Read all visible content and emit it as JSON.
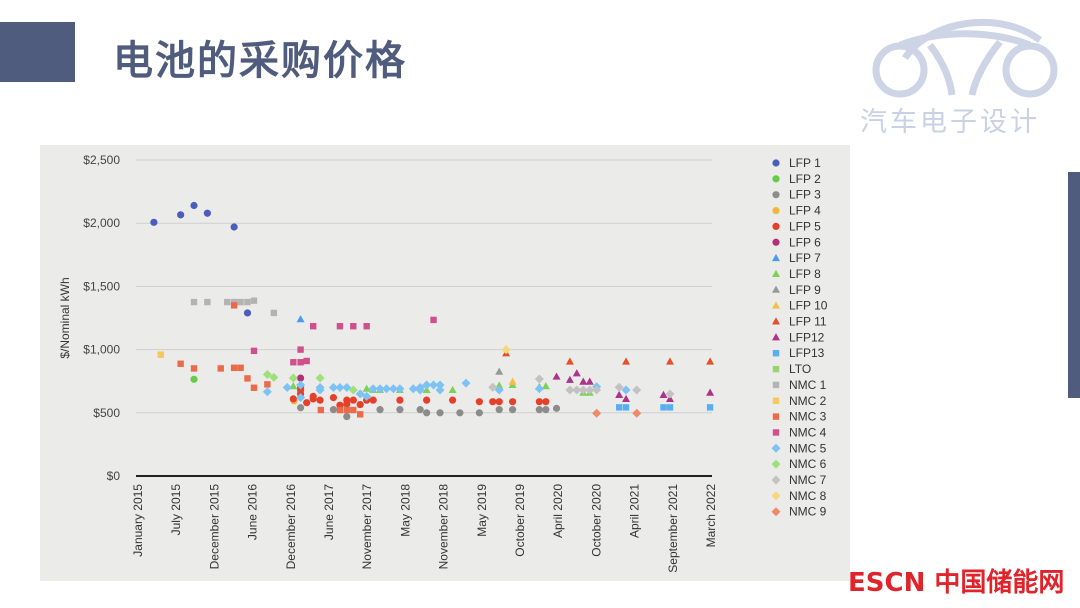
{
  "title": "电池的采购价格",
  "logo": {
    "text": "汽车电子设计"
  },
  "watermark": "ESCN 中国储能网",
  "chart_data": {
    "type": "scatter",
    "title": "",
    "xlabel": "",
    "ylabel": "$/Nominal kWh",
    "x_tick_labels": [
      "January 2015",
      "July 2015",
      "December 2015",
      "June 2016",
      "December 2016",
      "June 2017",
      "November 2017",
      "May 2018",
      "November 2018",
      "May 2019",
      "October 2019",
      "April 2020",
      "October 2020",
      "April 2021",
      "September 2021",
      "March 2022"
    ],
    "x_note": "x values are positions in tick-label units (0 = January 2015, 15 = March 2022)",
    "y_tick_labels": [
      "$0",
      "$500",
      "$1,000",
      "$1,500",
      "$2,000",
      "$2,500"
    ],
    "y_ticks": [
      0,
      500,
      1000,
      1500,
      2000,
      2500
    ],
    "ylim": [
      0,
      2500
    ],
    "xlim": [
      0,
      15
    ],
    "grid": true,
    "legend_position": "right",
    "series": [
      {
        "name": "LFP 1",
        "color": "#4a5dbd",
        "marker": "circle",
        "points": [
          [
            0.39,
            2007
          ],
          [
            1.09,
            2066
          ],
          [
            1.44,
            2140
          ],
          [
            1.79,
            2079
          ],
          [
            2.49,
            1970
          ],
          [
            2.84,
            1290
          ]
        ]
      },
      {
        "name": "LFP 2",
        "color": "#66cc44",
        "marker": "circle",
        "points": [
          [
            1.44,
            765
          ]
        ]
      },
      {
        "name": "LFP 3",
        "color": "#8c8c8c",
        "marker": "circle",
        "points": [
          [
            4.23,
            540
          ],
          [
            5.09,
            525
          ],
          [
            5.44,
            470
          ],
          [
            6.31,
            525
          ],
          [
            6.83,
            525
          ],
          [
            7.36,
            525
          ],
          [
            7.53,
            500
          ],
          [
            7.88,
            500
          ],
          [
            8.4,
            500
          ],
          [
            8.91,
            500
          ],
          [
            9.43,
            525
          ],
          [
            9.78,
            525
          ],
          [
            10.48,
            525
          ],
          [
            10.65,
            525
          ],
          [
            10.93,
            535
          ]
        ]
      },
      {
        "name": "LFP 4",
        "color": "#f2b73a",
        "marker": "circle",
        "points": [
          [
            4.06,
            594
          ]
        ]
      },
      {
        "name": "LFP 5",
        "color": "#e5402a",
        "marker": "circle",
        "points": [
          [
            4.04,
            610
          ],
          [
            4.23,
            650
          ],
          [
            4.23,
            680
          ],
          [
            4.23,
            700
          ],
          [
            4.39,
            580
          ],
          [
            4.56,
            610
          ],
          [
            4.56,
            630
          ],
          [
            4.74,
            600
          ],
          [
            5.09,
            620
          ],
          [
            5.26,
            560
          ],
          [
            5.44,
            600
          ],
          [
            5.44,
            570
          ],
          [
            5.61,
            600
          ],
          [
            5.79,
            565
          ],
          [
            5.96,
            600
          ],
          [
            6.13,
            600
          ],
          [
            6.83,
            600
          ],
          [
            7.53,
            600
          ],
          [
            8.21,
            600
          ],
          [
            8.91,
            588
          ],
          [
            9.26,
            588
          ],
          [
            9.43,
            588
          ],
          [
            9.78,
            588
          ],
          [
            10.48,
            588
          ],
          [
            10.65,
            588
          ]
        ]
      },
      {
        "name": "LFP 6",
        "color": "#b52f78",
        "marker": "circle",
        "points": [
          [
            4.23,
            775
          ]
        ]
      },
      {
        "name": "LFP 7",
        "color": "#4a9bef",
        "marker": "triangle",
        "points": [
          [
            4.23,
            1240
          ]
        ]
      },
      {
        "name": "LFP 8",
        "color": "#7ed158",
        "marker": "triangle",
        "points": [
          [
            4.04,
            710
          ],
          [
            5.96,
            690
          ],
          [
            6.13,
            680
          ],
          [
            6.31,
            680
          ],
          [
            6.83,
            680
          ],
          [
            7.53,
            680
          ],
          [
            8.21,
            680
          ],
          [
            9.43,
            715
          ],
          [
            9.78,
            720
          ],
          [
            10.48,
            705
          ],
          [
            10.65,
            710
          ],
          [
            11.63,
            659
          ],
          [
            11.8,
            659
          ]
        ]
      },
      {
        "name": "LFP 9",
        "color": "#999999",
        "marker": "triangle",
        "points": [
          [
            9.43,
            825
          ]
        ]
      },
      {
        "name": "LFP 10",
        "color": "#f2c04a",
        "marker": "triangle",
        "points": [
          [
            9.78,
            746
          ]
        ]
      },
      {
        "name": "LFP 11",
        "color": "#e5502a",
        "marker": "triangle",
        "points": [
          [
            9.61,
            970
          ],
          [
            11.28,
            905
          ],
          [
            12.75,
            905
          ],
          [
            13.9,
            905
          ],
          [
            14.95,
            905
          ]
        ]
      },
      {
        "name": "LFP12",
        "color": "#ad3388",
        "marker": "triangle",
        "points": [
          [
            10.93,
            786
          ],
          [
            11.28,
            760
          ],
          [
            11.46,
            812
          ],
          [
            11.63,
            746
          ],
          [
            11.8,
            746
          ],
          [
            12.57,
            641
          ],
          [
            12.75,
            609
          ],
          [
            13.73,
            641
          ],
          [
            13.9,
            609
          ],
          [
            14.95,
            659
          ]
        ]
      },
      {
        "name": "LFP13",
        "color": "#59aef0",
        "marker": "square",
        "points": [
          [
            12.57,
            543
          ],
          [
            12.75,
            543
          ],
          [
            13.73,
            543
          ],
          [
            13.9,
            543
          ],
          [
            14.95,
            543
          ]
        ]
      },
      {
        "name": "LTO",
        "color": "#9ad46a",
        "marker": "square",
        "points": []
      },
      {
        "name": "NMC 1",
        "color": "#b3b3b3",
        "marker": "square",
        "points": [
          [
            1.44,
            1376
          ],
          [
            1.79,
            1376
          ],
          [
            2.31,
            1376
          ],
          [
            2.49,
            1376
          ],
          [
            2.66,
            1376
          ],
          [
            2.84,
            1376
          ],
          [
            3.01,
            1387
          ],
          [
            3.53,
            1290
          ]
        ]
      },
      {
        "name": "NMC 2",
        "color": "#f5c85a",
        "marker": "square",
        "points": [
          [
            0.57,
            960
          ]
        ]
      },
      {
        "name": "NMC 3",
        "color": "#ea6a4a",
        "marker": "square",
        "points": [
          [
            2.49,
            1350
          ],
          [
            1.09,
            888
          ],
          [
            1.44,
            851
          ],
          [
            2.14,
            851
          ],
          [
            2.49,
            856
          ],
          [
            2.66,
            856
          ],
          [
            2.84,
            772
          ],
          [
            3.01,
            698
          ],
          [
            3.36,
            725
          ],
          [
            4.76,
            522
          ],
          [
            5.26,
            522
          ],
          [
            5.44,
            522
          ],
          [
            5.61,
            522
          ],
          [
            5.79,
            488
          ]
        ]
      },
      {
        "name": "NMC 4",
        "color": "#d24f8e",
        "marker": "square",
        "points": [
          [
            3.01,
            990
          ],
          [
            4.04,
            900
          ],
          [
            4.23,
            900
          ],
          [
            4.23,
            1000
          ],
          [
            4.39,
            910
          ],
          [
            4.56,
            1185
          ],
          [
            5.26,
            1185
          ],
          [
            5.61,
            1185
          ],
          [
            5.96,
            1185
          ],
          [
            7.71,
            1235
          ]
        ]
      },
      {
        "name": "NMC 5",
        "color": "#7cc2f4",
        "marker": "diamond",
        "points": [
          [
            3.36,
            667
          ],
          [
            3.88,
            700
          ],
          [
            4.23,
            720
          ],
          [
            4.23,
            620
          ],
          [
            4.74,
            700
          ],
          [
            4.74,
            680
          ],
          [
            5.09,
            700
          ],
          [
            5.26,
            700
          ],
          [
            5.44,
            700
          ],
          [
            5.79,
            650
          ],
          [
            5.96,
            630
          ],
          [
            6.13,
            690
          ],
          [
            6.31,
            690
          ],
          [
            6.48,
            690
          ],
          [
            6.66,
            690
          ],
          [
            6.83,
            690
          ],
          [
            7.18,
            690
          ],
          [
            7.36,
            700
          ],
          [
            7.36,
            680
          ],
          [
            7.53,
            720
          ],
          [
            7.71,
            720
          ],
          [
            7.88,
            720
          ],
          [
            7.88,
            680
          ],
          [
            8.56,
            735
          ],
          [
            9.43,
            680
          ],
          [
            10.48,
            690
          ],
          [
            11.98,
            706
          ],
          [
            12.75,
            680
          ]
        ]
      },
      {
        "name": "NMC 6",
        "color": "#9ee07a",
        "marker": "diamond",
        "points": [
          [
            3.36,
            803
          ],
          [
            3.53,
            780
          ],
          [
            4.04,
            775
          ],
          [
            4.74,
            775
          ],
          [
            5.61,
            680
          ]
        ]
      },
      {
        "name": "NMC 7",
        "color": "#c2c2c2",
        "marker": "diamond",
        "points": [
          [
            9.26,
            702
          ],
          [
            10.48,
            767
          ],
          [
            11.28,
            680
          ],
          [
            11.46,
            680
          ],
          [
            11.63,
            680
          ],
          [
            11.8,
            680
          ],
          [
            11.98,
            680
          ],
          [
            12.57,
            702
          ],
          [
            13.03,
            680
          ],
          [
            13.9,
            649
          ]
        ]
      },
      {
        "name": "NMC 8",
        "color": "#f6d77a",
        "marker": "diamond",
        "points": [
          [
            9.61,
            1000
          ]
        ]
      },
      {
        "name": "NMC 9",
        "color": "#f0886a",
        "marker": "diamond",
        "points": [
          [
            11.98,
            496
          ],
          [
            13.03,
            496
          ]
        ]
      }
    ]
  }
}
